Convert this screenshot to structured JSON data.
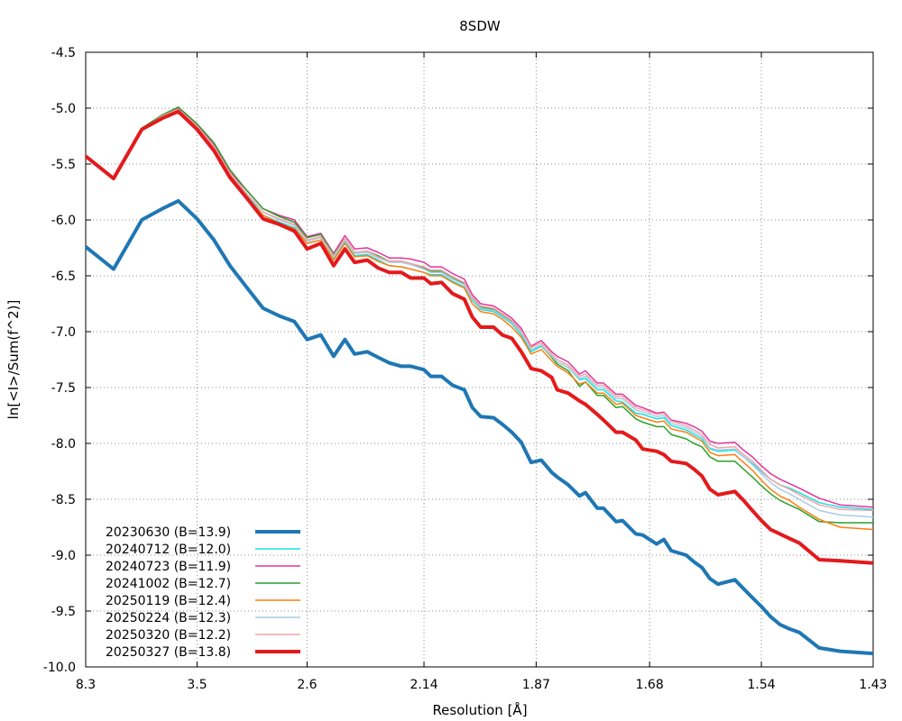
{
  "chart_data": {
    "type": "line",
    "title": "8SDW",
    "xlabel": "Resolution [Å]",
    "ylabel": "ln[<I>/Sum(f^2)]",
    "x_scale": "1/d^2",
    "xlim": [
      8.3,
      1.43
    ],
    "ylim": [
      -10.0,
      -4.5
    ],
    "x_ticks": [
      "8.3",
      "3.5",
      "2.6",
      "2.14",
      "1.87",
      "1.68",
      "1.54",
      "1.43"
    ],
    "y_ticks": [
      "-4.5",
      "-5.0",
      "-5.5",
      "-6.0",
      "-6.5",
      "-7.0",
      "-7.5",
      "-8.0",
      "-8.5",
      "-9.0",
      "-9.5",
      "-10.0"
    ],
    "grid": true,
    "legend_position": "bottom-left",
    "x": [
      8.3,
      5.65,
      4.55,
      4.06,
      3.77,
      3.5,
      3.3,
      3.14,
      2.99,
      2.87,
      2.76,
      2.67,
      2.6,
      2.53,
      2.47,
      2.42,
      2.38,
      2.33,
      2.29,
      2.25,
      2.21,
      2.18,
      2.14,
      2.12,
      2.09,
      2.06,
      2.03,
      2.01,
      1.99,
      1.96,
      1.94,
      1.92,
      1.9,
      1.88,
      1.86,
      1.84,
      1.83,
      1.81,
      1.79,
      1.78,
      1.76,
      1.75,
      1.73,
      1.72,
      1.7,
      1.69,
      1.67,
      1.66,
      1.65,
      1.63,
      1.62,
      1.61,
      1.6,
      1.59,
      1.57,
      1.56,
      1.55,
      1.54,
      1.53,
      1.52,
      1.51,
      1.5,
      1.48,
      1.46,
      1.43
    ],
    "series": [
      {
        "name": "20230630 (B=13.9)",
        "color": "#1f77b4",
        "width": 4,
        "values": [
          -6.24,
          -6.44,
          -6.0,
          -5.9,
          -5.83,
          -5.99,
          -6.18,
          -6.41,
          -6.61,
          -6.79,
          -6.86,
          -6.91,
          -7.07,
          -7.03,
          -7.22,
          -7.07,
          -7.2,
          -7.18,
          -7.23,
          -7.28,
          -7.31,
          -7.31,
          -7.34,
          -7.4,
          -7.4,
          -7.48,
          -7.52,
          -7.68,
          -7.76,
          -7.77,
          -7.83,
          -7.9,
          -7.99,
          -8.17,
          -8.15,
          -8.26,
          -8.3,
          -8.37,
          -8.47,
          -8.44,
          -8.58,
          -8.58,
          -8.7,
          -8.69,
          -8.81,
          -8.82,
          -8.9,
          -8.86,
          -8.96,
          -9.0,
          -9.06,
          -9.11,
          -9.21,
          -9.26,
          -9.22,
          -9.3,
          -9.38,
          -9.46,
          -9.55,
          -9.62,
          -9.66,
          -9.69,
          -9.83,
          -9.86,
          -9.88
        ]
      },
      {
        "name": "20240712 (B=12.0)",
        "color": "#17e0e0",
        "width": 1.5,
        "values": [
          -5.43,
          -5.62,
          -5.18,
          -5.07,
          -5.0,
          -5.16,
          -5.34,
          -5.59,
          -5.78,
          -5.96,
          -6.02,
          -6.07,
          -6.21,
          -6.18,
          -6.35,
          -6.2,
          -6.32,
          -6.31,
          -6.36,
          -6.41,
          -6.42,
          -6.44,
          -6.47,
          -6.49,
          -6.49,
          -6.55,
          -6.6,
          -6.72,
          -6.8,
          -6.82,
          -6.87,
          -6.93,
          -7.03,
          -7.18,
          -7.13,
          -7.22,
          -7.27,
          -7.32,
          -7.43,
          -7.42,
          -7.52,
          -7.52,
          -7.62,
          -7.63,
          -7.73,
          -7.74,
          -7.78,
          -7.77,
          -7.84,
          -7.88,
          -7.92,
          -7.96,
          -8.05,
          -8.07,
          -8.06,
          -8.12,
          -8.18,
          -8.25,
          -8.32,
          -8.37,
          -8.4,
          -8.44,
          -8.53,
          -8.57,
          -8.59
        ]
      },
      {
        "name": "20240723 (B=11.9)",
        "color": "#e0359c",
        "width": 1.5,
        "values": [
          -5.43,
          -5.62,
          -5.18,
          -5.07,
          -5.0,
          -5.15,
          -5.33,
          -5.57,
          -5.74,
          -5.9,
          -5.96,
          -6.0,
          -6.15,
          -6.12,
          -6.3,
          -6.14,
          -6.26,
          -6.25,
          -6.29,
          -6.34,
          -6.34,
          -6.35,
          -6.38,
          -6.42,
          -6.42,
          -6.48,
          -6.53,
          -6.67,
          -6.75,
          -6.77,
          -6.82,
          -6.88,
          -6.97,
          -7.13,
          -7.08,
          -7.18,
          -7.22,
          -7.27,
          -7.38,
          -7.35,
          -7.46,
          -7.46,
          -7.56,
          -7.56,
          -7.66,
          -7.68,
          -7.73,
          -7.72,
          -7.79,
          -7.82,
          -7.85,
          -7.89,
          -7.98,
          -8.0,
          -7.99,
          -8.06,
          -8.12,
          -8.2,
          -8.27,
          -8.32,
          -8.36,
          -8.4,
          -8.49,
          -8.55,
          -8.57
        ]
      },
      {
        "name": "20241002 (B=12.7)",
        "color": "#2ca02c",
        "width": 1.5,
        "values": [
          -5.43,
          -5.63,
          -5.18,
          -5.06,
          -4.99,
          -5.14,
          -5.31,
          -5.55,
          -5.74,
          -5.9,
          -5.97,
          -6.02,
          -6.16,
          -6.13,
          -6.31,
          -6.17,
          -6.29,
          -6.28,
          -6.32,
          -6.37,
          -6.37,
          -6.39,
          -6.43,
          -6.46,
          -6.46,
          -6.52,
          -6.57,
          -6.7,
          -6.78,
          -6.8,
          -6.85,
          -6.91,
          -7.0,
          -7.16,
          -7.12,
          -7.23,
          -7.29,
          -7.35,
          -7.49,
          -7.45,
          -7.57,
          -7.57,
          -7.68,
          -7.67,
          -7.78,
          -7.81,
          -7.85,
          -7.85,
          -7.92,
          -7.96,
          -8.0,
          -8.03,
          -8.12,
          -8.16,
          -8.16,
          -8.23,
          -8.3,
          -8.38,
          -8.45,
          -8.51,
          -8.55,
          -8.59,
          -8.7,
          -8.71,
          -8.71
        ]
      },
      {
        "name": "20250119 (B=12.4)",
        "color": "#ff7f0e",
        "width": 1.5,
        "values": [
          -5.43,
          -5.63,
          -5.19,
          -5.07,
          -5.01,
          -5.17,
          -5.36,
          -5.6,
          -5.8,
          -5.96,
          -6.03,
          -6.08,
          -6.21,
          -6.18,
          -6.36,
          -6.21,
          -6.33,
          -6.32,
          -6.37,
          -6.41,
          -6.42,
          -6.44,
          -6.47,
          -6.5,
          -6.5,
          -6.56,
          -6.61,
          -6.75,
          -6.82,
          -6.84,
          -6.89,
          -6.96,
          -7.05,
          -7.2,
          -7.16,
          -7.26,
          -7.31,
          -7.37,
          -7.47,
          -7.45,
          -7.55,
          -7.55,
          -7.65,
          -7.64,
          -7.75,
          -7.77,
          -7.81,
          -7.8,
          -7.87,
          -7.9,
          -7.94,
          -7.98,
          -8.08,
          -8.11,
          -8.1,
          -8.17,
          -8.24,
          -8.33,
          -8.41,
          -8.47,
          -8.51,
          -8.57,
          -8.68,
          -8.75,
          -8.77
        ]
      },
      {
        "name": "20250224 (B=12.3)",
        "color": "#a6cee3",
        "width": 1.5,
        "values": [
          -5.43,
          -5.63,
          -5.19,
          -5.07,
          -5.01,
          -5.16,
          -5.35,
          -5.58,
          -5.77,
          -5.93,
          -6.0,
          -6.05,
          -6.19,
          -6.16,
          -6.33,
          -6.18,
          -6.3,
          -6.29,
          -6.34,
          -6.38,
          -6.38,
          -6.4,
          -6.44,
          -6.47,
          -6.47,
          -6.53,
          -6.58,
          -6.71,
          -6.79,
          -6.81,
          -6.86,
          -6.92,
          -7.01,
          -7.16,
          -7.12,
          -7.22,
          -7.27,
          -7.32,
          -7.42,
          -7.4,
          -7.5,
          -7.5,
          -7.6,
          -7.6,
          -7.7,
          -7.72,
          -7.76,
          -7.75,
          -7.82,
          -7.86,
          -7.9,
          -7.94,
          -8.04,
          -8.06,
          -8.05,
          -8.12,
          -8.19,
          -8.27,
          -8.35,
          -8.41,
          -8.45,
          -8.5,
          -8.6,
          -8.64,
          -8.66
        ]
      },
      {
        "name": "20250320 (B=12.2)",
        "color": "#f4a3a8",
        "width": 1.5,
        "values": [
          -5.43,
          -5.63,
          -5.19,
          -5.07,
          -5.01,
          -5.16,
          -5.34,
          -5.58,
          -5.77,
          -5.93,
          -5.99,
          -6.04,
          -6.18,
          -6.15,
          -6.32,
          -6.17,
          -6.29,
          -6.28,
          -6.33,
          -6.37,
          -6.37,
          -6.39,
          -6.42,
          -6.45,
          -6.45,
          -6.51,
          -6.56,
          -6.69,
          -6.77,
          -6.79,
          -6.84,
          -6.9,
          -6.99,
          -7.14,
          -7.1,
          -7.2,
          -7.25,
          -7.3,
          -7.4,
          -7.38,
          -7.48,
          -7.48,
          -7.58,
          -7.58,
          -7.68,
          -7.7,
          -7.74,
          -7.73,
          -7.8,
          -7.84,
          -7.88,
          -7.92,
          -8.01,
          -8.04,
          -8.03,
          -8.1,
          -8.16,
          -8.24,
          -8.32,
          -8.37,
          -8.41,
          -8.46,
          -8.55,
          -8.59,
          -8.6
        ]
      },
      {
        "name": "20250327 (B=13.8)",
        "color": "#e31a1c",
        "width": 4,
        "values": [
          -5.43,
          -5.63,
          -5.19,
          -5.09,
          -5.03,
          -5.19,
          -5.38,
          -5.62,
          -5.81,
          -5.99,
          -6.04,
          -6.1,
          -6.26,
          -6.21,
          -6.41,
          -6.26,
          -6.38,
          -6.36,
          -6.43,
          -6.47,
          -6.47,
          -6.52,
          -6.52,
          -6.57,
          -6.56,
          -6.66,
          -6.71,
          -6.87,
          -6.96,
          -6.96,
          -7.03,
          -7.06,
          -7.18,
          -7.33,
          -7.35,
          -7.41,
          -7.52,
          -7.55,
          -7.62,
          -7.65,
          -7.74,
          -7.79,
          -7.9,
          -7.9,
          -7.97,
          -8.05,
          -8.07,
          -8.1,
          -8.16,
          -8.18,
          -8.23,
          -8.29,
          -8.41,
          -8.46,
          -8.43,
          -8.51,
          -8.6,
          -8.69,
          -8.77,
          -8.81,
          -8.85,
          -8.89,
          -9.04,
          -9.05,
          -9.07
        ]
      }
    ]
  }
}
